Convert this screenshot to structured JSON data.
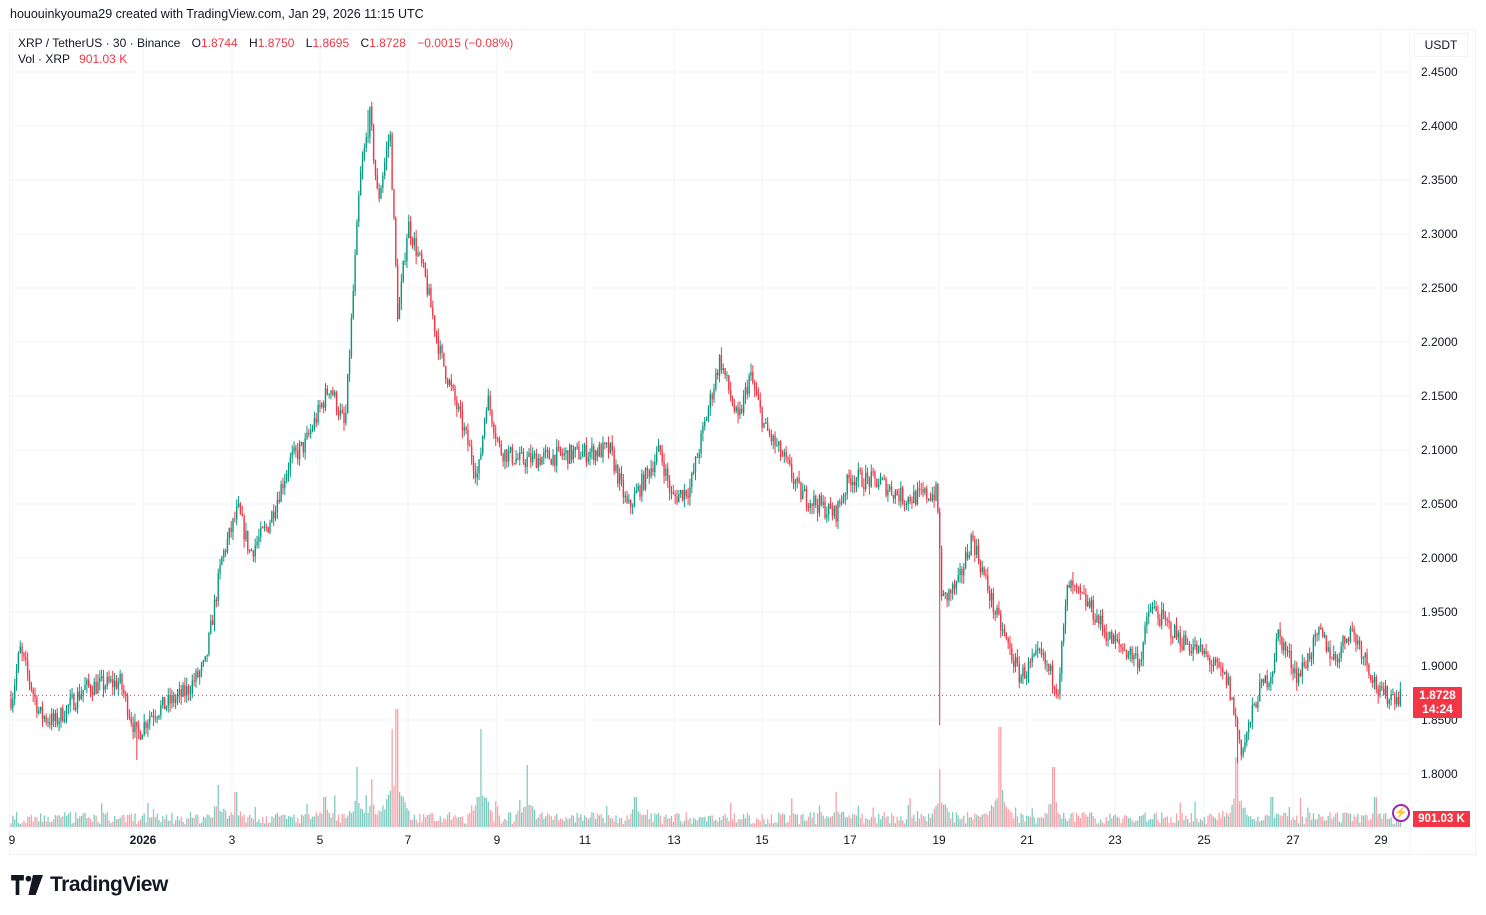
{
  "attribution": "hououinkyouma29 created with TradingView.com, Jan 29, 2026 11:15 UTC",
  "legend": {
    "symbol": "XRP / TetherUS · 30 · Binance",
    "open_label": "O",
    "open": "1.8744",
    "high_label": "H",
    "high": "1.8750",
    "low_label": "L",
    "low": "1.8695",
    "close_label": "C",
    "close": "1.8728",
    "change": "−0.0015 (−0.08%)",
    "vol_label": "Vol · XRP",
    "vol_value": "901.03 K"
  },
  "price_axis": {
    "currency": "USDT",
    "last_price": "1.8728",
    "countdown": "14:24",
    "volume_tag": "901.03 K",
    "ticks": [
      "2.4500",
      "2.4000",
      "2.3500",
      "2.3000",
      "2.2500",
      "2.2000",
      "2.1500",
      "2.1000",
      "2.0500",
      "2.0000",
      "1.9500",
      "1.9000",
      "1.8500",
      "1.8000"
    ]
  },
  "time_axis": {
    "ticks": [
      "9",
      "2026",
      "3",
      "5",
      "7",
      "9",
      "11",
      "13",
      "15",
      "17",
      "19",
      "21",
      "23",
      "25",
      "27",
      "29"
    ]
  },
  "colors": {
    "up": "#089981",
    "down": "#f23645",
    "vol_up": "#7fcbc0",
    "vol_down": "#f7a3aa",
    "grid": "#f0f3fa",
    "last_price_line": "#f23645",
    "alert_accent": "#9c27b0"
  },
  "brand": "TradingView",
  "chart_data": {
    "type": "candlestick",
    "title": "XRP / TetherUS · 30 · Binance",
    "interval": "30m",
    "xlabel": "",
    "ylabel": "USDT",
    "ylim": [
      1.78,
      2.47
    ],
    "grid": true,
    "x_ticks": [
      "Dec 29",
      "Jan 1 2026",
      "Jan 3",
      "Jan 5",
      "Jan 7",
      "Jan 9",
      "Jan 11",
      "Jan 13",
      "Jan 15",
      "Jan 17",
      "Jan 19",
      "Jan 21",
      "Jan 23",
      "Jan 25",
      "Jan 27",
      "Jan 29"
    ],
    "last_ohlc": {
      "open": 1.8744,
      "high": 1.875,
      "low": 1.8695,
      "close": 1.8728,
      "change": -0.0015,
      "change_pct": -0.08
    },
    "last_volume": "901.03K",
    "approx_close_path": [
      {
        "date": "Dec 29",
        "price": 1.87
      },
      {
        "date": "Dec 29 late",
        "price": 1.915
      },
      {
        "date": "Dec 30",
        "price": 1.855
      },
      {
        "date": "Dec 30 late",
        "price": 1.848
      },
      {
        "date": "Dec 31",
        "price": 1.88
      },
      {
        "date": "Dec 31 late",
        "price": 1.885
      },
      {
        "date": "Jan 1",
        "price": 1.835
      },
      {
        "date": "Jan 1 late",
        "price": 1.855
      },
      {
        "date": "Jan 2",
        "price": 1.875
      },
      {
        "date": "Jan 2 late",
        "price": 1.9
      },
      {
        "date": "Jan 3",
        "price": 2.0
      },
      {
        "date": "Jan 3 mid",
        "price": 2.045
      },
      {
        "date": "Jan 3 late",
        "price": 2.005
      },
      {
        "date": "Jan 4",
        "price": 2.03
      },
      {
        "date": "Jan 4 late",
        "price": 2.09
      },
      {
        "date": "Jan 5",
        "price": 2.105
      },
      {
        "date": "Jan 5 mid",
        "price": 2.16
      },
      {
        "date": "Jan 5 late",
        "price": 2.12
      },
      {
        "date": "Jan 6",
        "price": 2.35
      },
      {
        "date": "Jan 6 peak",
        "price": 2.41
      },
      {
        "date": "Jan 6 late",
        "price": 2.33
      },
      {
        "date": "Jan 6 high2",
        "price": 2.395
      },
      {
        "date": "Jan 7",
        "price": 2.22
      },
      {
        "date": "Jan 7 mid",
        "price": 2.31
      },
      {
        "date": "Jan 7 late",
        "price": 2.26
      },
      {
        "date": "Jan 8",
        "price": 2.19
      },
      {
        "date": "Jan 8 late",
        "price": 2.13
      },
      {
        "date": "Jan 9",
        "price": 2.075
      },
      {
        "date": "Jan 9 mid",
        "price": 2.15
      },
      {
        "date": "Jan 9 late",
        "price": 2.1
      },
      {
        "date": "Jan 10",
        "price": 2.09
      },
      {
        "date": "Jan 11",
        "price": 2.095
      },
      {
        "date": "Jan 12",
        "price": 2.1
      },
      {
        "date": "Jan 12 late",
        "price": 2.045
      },
      {
        "date": "Jan 13",
        "price": 2.1
      },
      {
        "date": "Jan 13 late",
        "price": 2.055
      },
      {
        "date": "Jan 14",
        "price": 2.065
      },
      {
        "date": "Jan 14 mid",
        "price": 2.185
      },
      {
        "date": "Jan 14 late",
        "price": 2.125
      },
      {
        "date": "Jan 15",
        "price": 2.17
      },
      {
        "date": "Jan 15 mid",
        "price": 2.12
      },
      {
        "date": "Jan 16",
        "price": 2.09
      },
      {
        "date": "Jan 16 late",
        "price": 2.06
      },
      {
        "date": "Jan 17",
        "price": 2.04
      },
      {
        "date": "Jan 17 mid",
        "price": 2.075
      },
      {
        "date": "Jan 18",
        "price": 2.07
      },
      {
        "date": "Jan 18 late",
        "price": 2.055
      },
      {
        "date": "Jan 19",
        "price": 2.06
      },
      {
        "date": "Jan 19 drop",
        "price": 1.96
      },
      {
        "date": "Jan 19 mid",
        "price": 1.975
      },
      {
        "date": "Jan 20",
        "price": 2.02
      },
      {
        "date": "Jan 20 late",
        "price": 1.95
      },
      {
        "date": "Jan 21",
        "price": 1.89
      },
      {
        "date": "Jan 21 mid",
        "price": 1.91
      },
      {
        "date": "Jan 21 late",
        "price": 1.88
      },
      {
        "date": "Jan 22",
        "price": 1.975
      },
      {
        "date": "Jan 22 late",
        "price": 1.955
      },
      {
        "date": "Jan 23",
        "price": 1.925
      },
      {
        "date": "Jan 23 late",
        "price": 1.905
      },
      {
        "date": "Jan 24",
        "price": 1.955
      },
      {
        "date": "Jan 24 late",
        "price": 1.925
      },
      {
        "date": "Jan 25",
        "price": 1.91
      },
      {
        "date": "Jan 25 late",
        "price": 1.885
      },
      {
        "date": "Jan 26",
        "price": 1.82
      },
      {
        "date": "Jan 26 mid",
        "price": 1.875
      },
      {
        "date": "Jan 26 late",
        "price": 1.895
      },
      {
        "date": "Jan 27",
        "price": 1.93
      },
      {
        "date": "Jan 27 mid",
        "price": 1.89
      },
      {
        "date": "Jan 28",
        "price": 1.93
      },
      {
        "date": "Jan 28 mid",
        "price": 1.905
      },
      {
        "date": "Jan 28 late",
        "price": 1.935
      },
      {
        "date": "Jan 29",
        "price": 1.915
      },
      {
        "date": "Jan 29 now",
        "price": 1.8728
      }
    ],
    "volume_spikes": [
      {
        "date": "Jan 6",
        "relative": 0.85,
        "direction": "up"
      },
      {
        "date": "Jan 6 late",
        "relative": 1.0,
        "direction": "down"
      },
      {
        "date": "Jan 9",
        "relative": 0.82,
        "direction": "up"
      },
      {
        "date": "Jan 10",
        "relative": 0.55,
        "direction": "down"
      },
      {
        "date": "Jan 19",
        "relative": 0.5,
        "direction": "down"
      },
      {
        "date": "Jan 20",
        "relative": 0.8,
        "direction": "down"
      },
      {
        "date": "Jan 26",
        "relative": 0.55,
        "direction": "down"
      }
    ]
  }
}
